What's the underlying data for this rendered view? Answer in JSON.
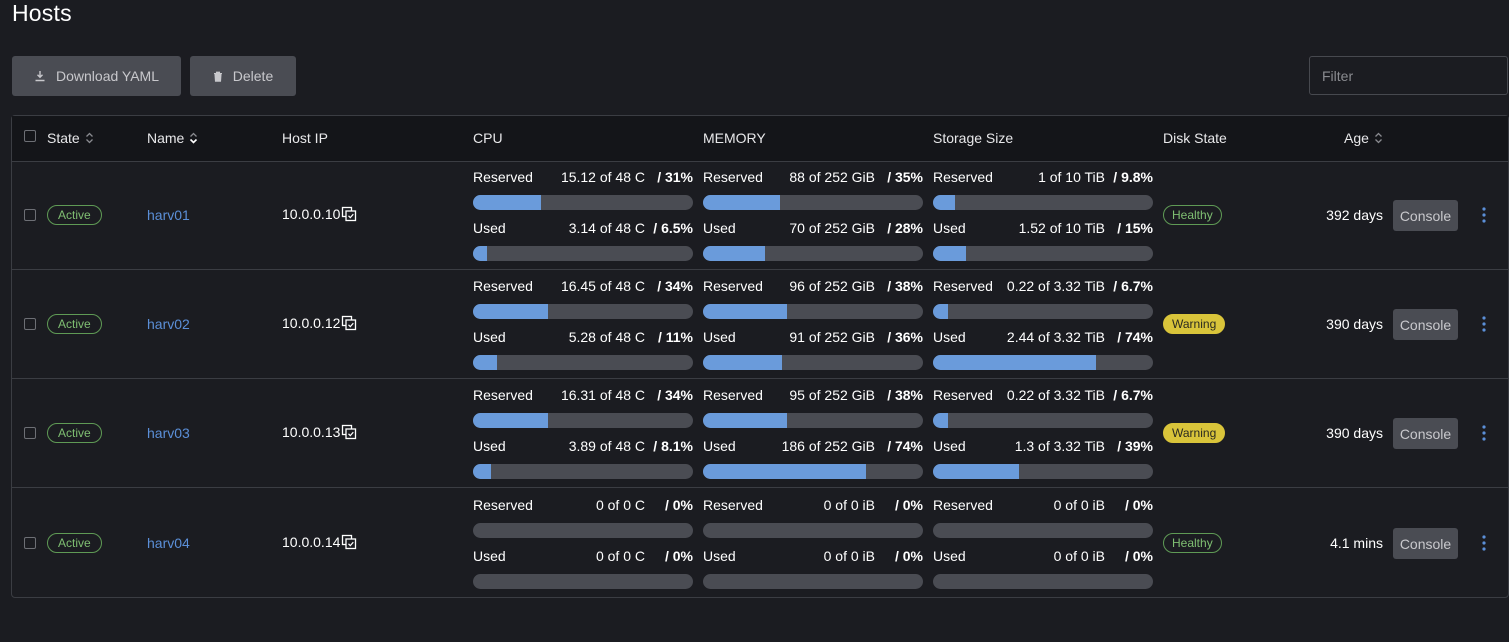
{
  "page": {
    "title": "Hosts"
  },
  "toolbar": {
    "download_label": "Download YAML",
    "delete_label": "Delete",
    "filter_placeholder": "Filter"
  },
  "table": {
    "headers": {
      "state": "State",
      "name": "Name",
      "host_ip": "Host IP",
      "cpu": "CPU",
      "memory": "MEMORY",
      "storage": "Storage Size",
      "disk_state": "Disk State",
      "age": "Age"
    },
    "console_label": "Console",
    "rows": [
      {
        "state": "Active",
        "name": "harv01",
        "ip": "10.0.0.10",
        "cpu": {
          "reserved": {
            "label": "Reserved",
            "amount": "15.12 of 48 C",
            "percent": "/ 31%",
            "fraction": 0.31
          },
          "used": {
            "label": "Used",
            "amount": "3.14 of 48 C",
            "percent": "/ 6.5%",
            "fraction": 0.065
          }
        },
        "memory": {
          "reserved": {
            "label": "Reserved",
            "amount": "88 of 252 GiB",
            "percent": "/ 35%",
            "fraction": 0.35
          },
          "used": {
            "label": "Used",
            "amount": "70 of 252 GiB",
            "percent": "/ 28%",
            "fraction": 0.28
          }
        },
        "storage": {
          "reserved": {
            "label": "Reserved",
            "amount": "1 of 10 TiB",
            "percent": "/ 9.8%",
            "fraction": 0.098
          },
          "used": {
            "label": "Used",
            "amount": "1.52 of 10 TiB",
            "percent": "/ 15%",
            "fraction": 0.15
          }
        },
        "disk_state": "Healthy",
        "disk_status": "healthy",
        "age": "392 days"
      },
      {
        "state": "Active",
        "name": "harv02",
        "ip": "10.0.0.12",
        "cpu": {
          "reserved": {
            "label": "Reserved",
            "amount": "16.45 of 48 C",
            "percent": "/ 34%",
            "fraction": 0.34
          },
          "used": {
            "label": "Used",
            "amount": "5.28 of 48 C",
            "percent": "/ 11%",
            "fraction": 0.11
          }
        },
        "memory": {
          "reserved": {
            "label": "Reserved",
            "amount": "96 of 252 GiB",
            "percent": "/ 38%",
            "fraction": 0.38
          },
          "used": {
            "label": "Used",
            "amount": "91 of 252 GiB",
            "percent": "/ 36%",
            "fraction": 0.36
          }
        },
        "storage": {
          "reserved": {
            "label": "Reserved",
            "amount": "0.22 of 3.32 TiB",
            "percent": "/ 6.7%",
            "fraction": 0.067
          },
          "used": {
            "label": "Used",
            "amount": "2.44 of 3.32 TiB",
            "percent": "/ 74%",
            "fraction": 0.74
          }
        },
        "disk_state": "Warning",
        "disk_status": "warning",
        "age": "390 days"
      },
      {
        "state": "Active",
        "name": "harv03",
        "ip": "10.0.0.13",
        "cpu": {
          "reserved": {
            "label": "Reserved",
            "amount": "16.31 of 48 C",
            "percent": "/ 34%",
            "fraction": 0.34
          },
          "used": {
            "label": "Used",
            "amount": "3.89 of 48 C",
            "percent": "/ 8.1%",
            "fraction": 0.081
          }
        },
        "memory": {
          "reserved": {
            "label": "Reserved",
            "amount": "95 of 252 GiB",
            "percent": "/ 38%",
            "fraction": 0.38
          },
          "used": {
            "label": "Used",
            "amount": "186 of 252 GiB",
            "percent": "/ 74%",
            "fraction": 0.74
          }
        },
        "storage": {
          "reserved": {
            "label": "Reserved",
            "amount": "0.22 of 3.32 TiB",
            "percent": "/ 6.7%",
            "fraction": 0.067
          },
          "used": {
            "label": "Used",
            "amount": "1.3 of 3.32 TiB",
            "percent": "/ 39%",
            "fraction": 0.39
          }
        },
        "disk_state": "Warning",
        "disk_status": "warning",
        "age": "390 days"
      },
      {
        "state": "Active",
        "name": "harv04",
        "ip": "10.0.0.14",
        "cpu": {
          "reserved": {
            "label": "Reserved",
            "amount": "0 of 0 C",
            "percent": "/ 0%",
            "fraction": 0
          },
          "used": {
            "label": "Used",
            "amount": "0 of 0 C",
            "percent": "/ 0%",
            "fraction": 0
          }
        },
        "memory": {
          "reserved": {
            "label": "Reserved",
            "amount": "0 of 0 iB",
            "percent": "/ 0%",
            "fraction": 0
          },
          "used": {
            "label": "Used",
            "amount": "0 of 0 iB",
            "percent": "/ 0%",
            "fraction": 0
          }
        },
        "storage": {
          "reserved": {
            "label": "Reserved",
            "amount": "0 of 0 iB",
            "percent": "/ 0%",
            "fraction": 0
          },
          "used": {
            "label": "Used",
            "amount": "0 of 0 iB",
            "percent": "/ 0%",
            "fraction": 0
          }
        },
        "disk_state": "Healthy",
        "disk_status": "healthy",
        "age": "4.1 mins"
      }
    ]
  },
  "colors": {
    "background": "#1b1c21",
    "header_background": "#141519",
    "accent_blue": "#5b8fd8",
    "bar_fill": "#6a9bdb",
    "bar_track": "#4a4c53",
    "active_green": "#7fbf72",
    "warning_yellow": "#d9c43a"
  },
  "icons": {
    "download": "download-icon",
    "delete": "trash-icon",
    "sort": "sort-icon",
    "copy": "copy-icon",
    "actions": "kebab-menu-icon"
  }
}
